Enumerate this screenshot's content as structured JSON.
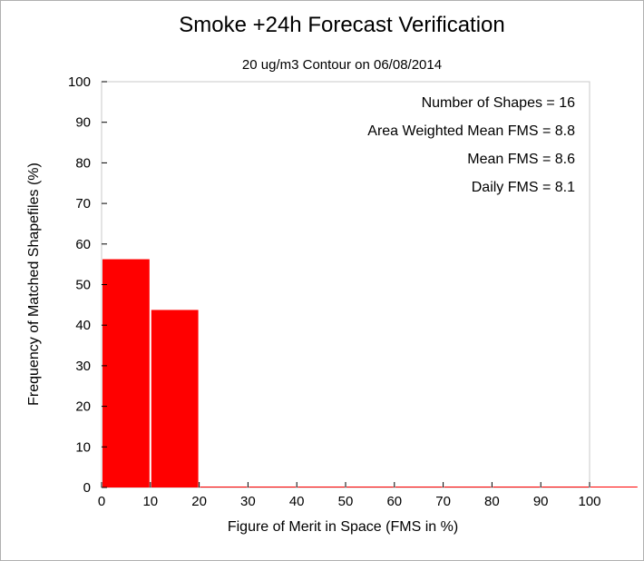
{
  "chart_data": {
    "type": "bar",
    "title": "Smoke +24h Forecast Verification",
    "subtitle": "20 ug/m3 Contour on 06/08/2014",
    "xlabel": "Figure of Merit in Space (FMS in %)",
    "ylabel": "Frequency of Matched Shapefiles (%)",
    "xlim": [
      0,
      100
    ],
    "ylim": [
      0,
      100
    ],
    "x_ticks": [
      "0",
      "10",
      "20",
      "30",
      "40",
      "50",
      "60",
      "70",
      "80",
      "90",
      "100"
    ],
    "y_ticks": [
      "0",
      "10",
      "20",
      "30",
      "40",
      "50",
      "60",
      "70",
      "80",
      "90",
      "100"
    ],
    "bins": [
      {
        "x0": 0,
        "x1": 10,
        "value": 56.25
      },
      {
        "x0": 10,
        "x1": 20,
        "value": 43.75
      },
      {
        "x0": 20,
        "x1": 30,
        "value": 0
      },
      {
        "x0": 30,
        "x1": 40,
        "value": 0
      },
      {
        "x0": 40,
        "x1": 50,
        "value": 0
      },
      {
        "x0": 50,
        "x1": 60,
        "value": 0
      },
      {
        "x0": 60,
        "x1": 70,
        "value": 0
      },
      {
        "x0": 70,
        "x1": 80,
        "value": 0
      },
      {
        "x0": 80,
        "x1": 90,
        "value": 0
      },
      {
        "x0": 90,
        "x1": 100,
        "value": 0
      },
      {
        "x0": 100,
        "x1": 110,
        "value": 0
      }
    ],
    "bar_color": "#ff0000",
    "annotations": [
      "Number of Shapes = 16",
      "Area Weighted Mean FMS = 8.8",
      "Mean FMS = 8.6",
      "Daily FMS = 8.1"
    ],
    "grid": false,
    "legend": false
  }
}
